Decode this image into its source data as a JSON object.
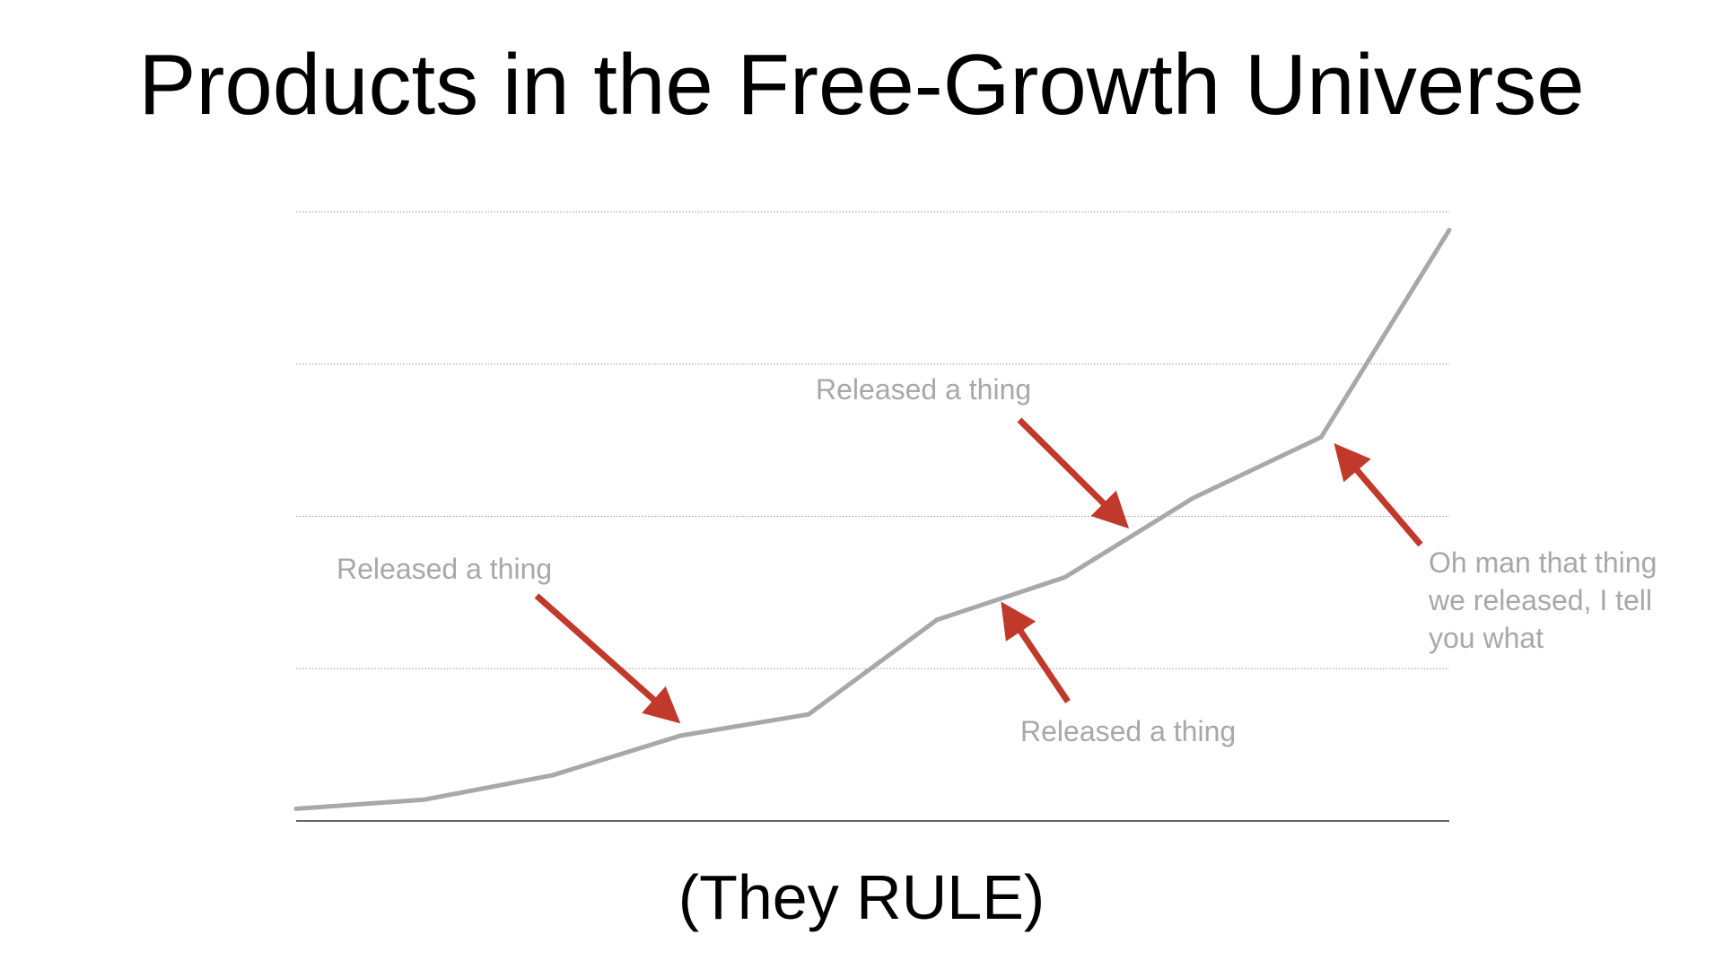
{
  "slide": {
    "title": "Products in the Free-Growth Universe",
    "subtitle": "(They RULE)"
  },
  "chart_data": {
    "type": "line",
    "title": "",
    "xlabel": "",
    "ylabel": "",
    "x": [
      1,
      2,
      3,
      4,
      5,
      6,
      7,
      8,
      9,
      10
    ],
    "series": [
      {
        "values": [
          0.02,
          0.035,
          0.075,
          0.14,
          0.175,
          0.33,
          0.4,
          0.53,
          0.63,
          0.97
        ],
        "color": "#a8a8a8"
      }
    ],
    "ylim": [
      0,
      1
    ],
    "grid": {
      "horizontal": true,
      "style": "dotted",
      "values": [
        0.25,
        0.5,
        0.75,
        1.0
      ]
    },
    "axis_color": "#333333",
    "arrow_color": "#c0392b",
    "annotations": [
      {
        "lines": [
          "Released a thing"
        ],
        "color": "#a8a8a8",
        "points_to": {
          "x": 4.0,
          "y": 0.16
        }
      },
      {
        "lines": [
          "Released a thing"
        ],
        "color": "#a8a8a8",
        "points_to": {
          "x": 7.5,
          "y": 0.48
        }
      },
      {
        "lines": [
          "Released a thing"
        ],
        "color": "#a8a8a8",
        "points_to": {
          "x": 6.5,
          "y": 0.36
        }
      },
      {
        "lines": [
          "Oh man that thing",
          "we released, I tell",
          "you what"
        ],
        "color": "#a8a8a8",
        "points_to": {
          "x": 9.1,
          "y": 0.62
        }
      }
    ]
  }
}
